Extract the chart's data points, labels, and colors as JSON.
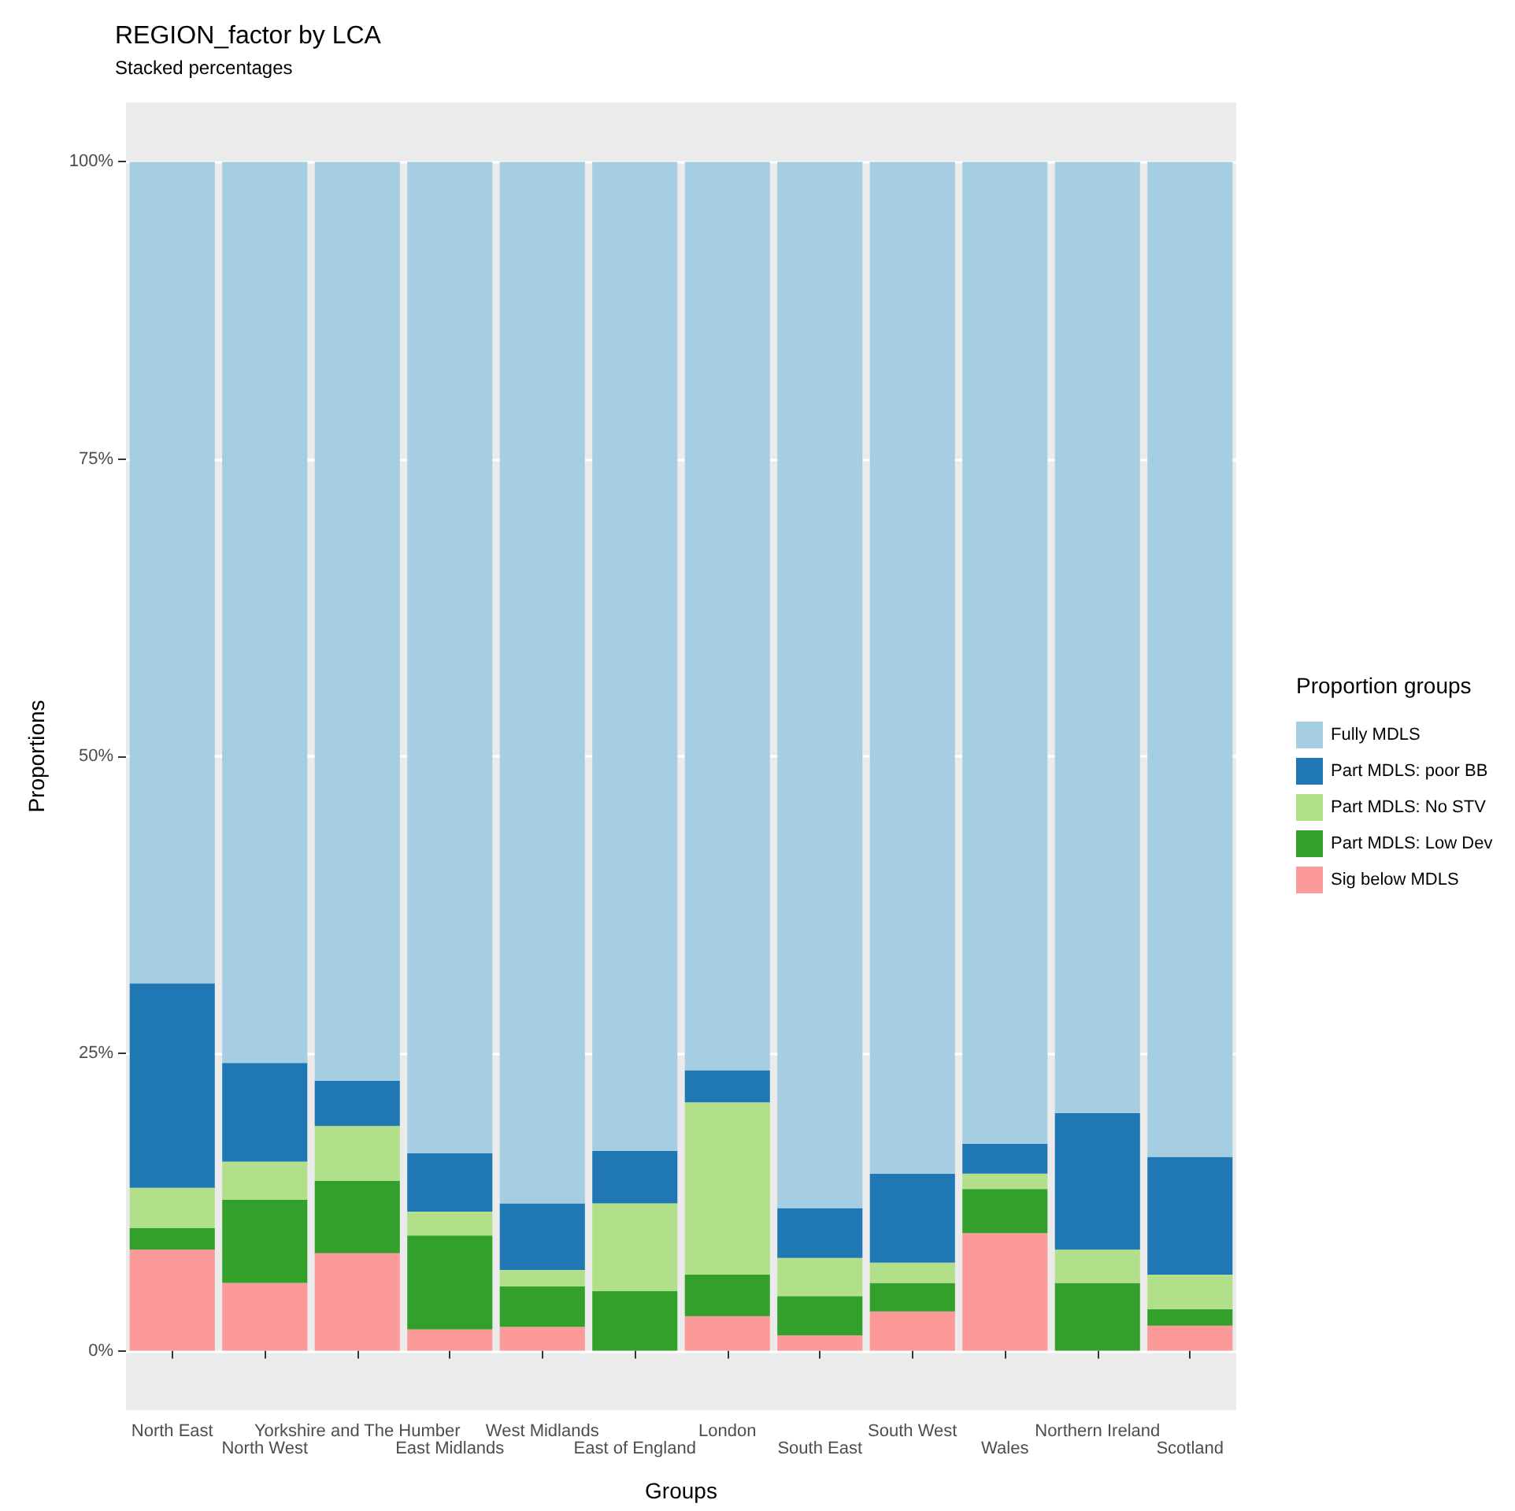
{
  "chart_data": {
    "type": "bar",
    "title": "REGION_factor by LCA",
    "subtitle": "Stacked percentages",
    "xlabel": "Groups",
    "ylabel": "Proportions",
    "legend_title": "Proportion groups",
    "categories": [
      "North East",
      "North West",
      "Yorkshire and The Humber",
      "East Midlands",
      "West Midlands",
      "East of England",
      "London",
      "South East",
      "South West",
      "Wales",
      "Northern Ireland",
      "Scotland"
    ],
    "stacked": true,
    "legend": "right",
    "grid": "y",
    "ylim": [
      -5,
      105
    ],
    "yticks": [
      {
        "value": 0,
        "label": "0%"
      },
      {
        "value": 25,
        "label": "25%"
      },
      {
        "value": 50,
        "label": "50%"
      },
      {
        "value": 75,
        "label": "75%"
      },
      {
        "value": 100,
        "label": "100%"
      }
    ],
    "series": [
      {
        "name": "Sig below MDLS",
        "color": "#fb9a99",
        "values": [
          8.5,
          5.7,
          8.2,
          1.8,
          2.0,
          0,
          2.9,
          1.3,
          3.3,
          9.9,
          0,
          2.1
        ]
      },
      {
        "name": "Part MDLS: Low Dev",
        "color": "#33a02c",
        "values": [
          1.8,
          7.0,
          6.1,
          7.9,
          3.4,
          5.0,
          3.5,
          3.3,
          2.4,
          3.7,
          5.7,
          1.4
        ]
      },
      {
        "name": "Part MDLS: No STV",
        "color": "#b2df8a",
        "values": [
          3.4,
          3.2,
          4.6,
          2.0,
          1.4,
          7.4,
          14.5,
          3.2,
          1.7,
          1.3,
          2.8,
          2.9
        ]
      },
      {
        "name": "Part MDLS: poor BB",
        "color": "#1f78b4",
        "values": [
          17.2,
          8.3,
          3.8,
          4.9,
          5.6,
          4.4,
          2.7,
          4.2,
          7.5,
          2.5,
          11.5,
          9.9
        ]
      },
      {
        "name": "Fully MDLS",
        "color": "#a6cee3",
        "values": [
          69.1,
          75.8,
          77.3,
          83.4,
          87.6,
          83.2,
          76.4,
          88.0,
          85.1,
          82.6,
          80.0,
          83.7
        ]
      }
    ]
  }
}
